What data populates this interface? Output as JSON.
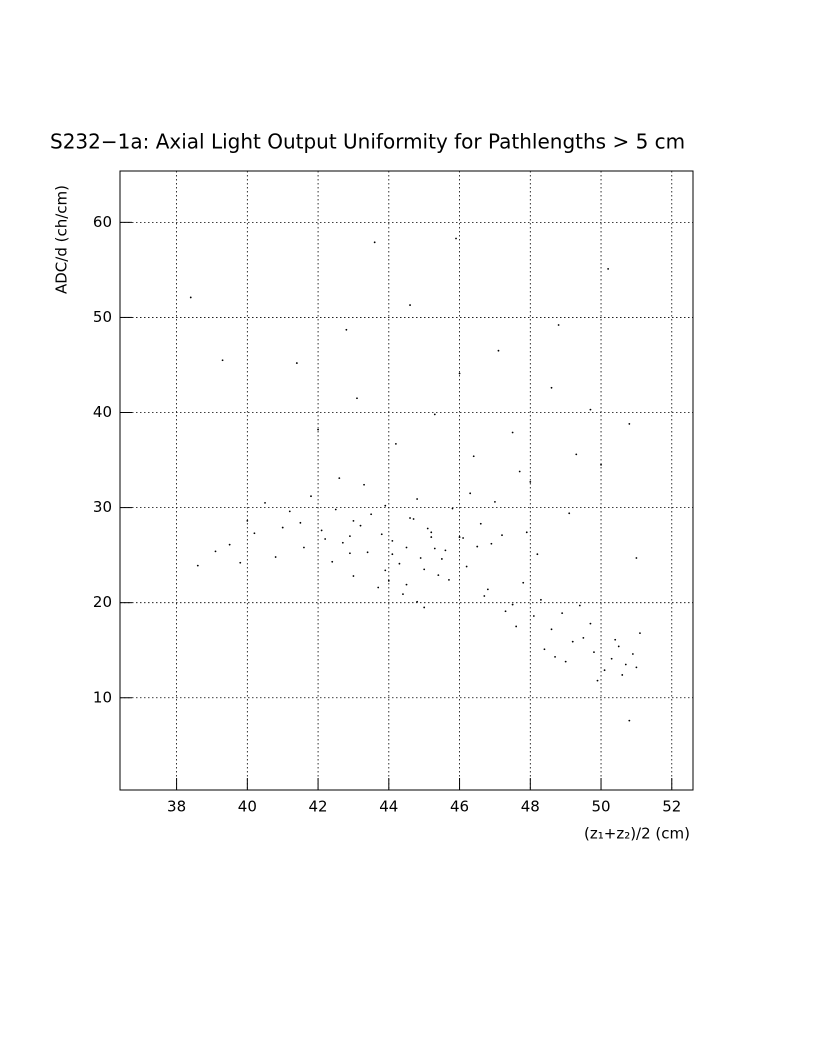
{
  "chart_data": {
    "type": "scatter",
    "title": "S232−1a: Axial Light Output Uniformity for Pathlengths > 5 cm",
    "x_label": "(z₁+z₂)/2 (cm)",
    "y_label": "ADC/d (ch/cm)",
    "xlim": [
      36.4,
      52.6
    ],
    "ylim": [
      0.3,
      65.4
    ],
    "xticks": [
      38,
      40,
      42,
      44,
      46,
      48,
      50,
      52
    ],
    "yticks": [
      10,
      20,
      30,
      40,
      50,
      60
    ],
    "grid": true,
    "color": "#000000",
    "x": [
      44.1,
      43.8,
      44.5,
      45.2,
      43.2,
      42.7,
      44.9,
      45.6,
      46.1,
      43.5,
      42.1,
      41.5,
      44.3,
      45.0,
      46.5,
      47.2,
      43.9,
      44.7,
      42.9,
      45.4,
      46.8,
      47.5,
      48.1,
      48.6,
      49.2,
      49.8,
      50.3,
      50.7,
      49.5,
      48.9,
      50.1,
      50.9,
      48.3,
      47.8,
      49.0,
      50.5,
      51.0,
      49.7,
      48.4,
      47.3,
      40.2,
      39.5,
      40.8,
      41.2,
      39.1,
      38.6,
      40.5,
      41.8,
      42.4,
      43.0,
      43.7,
      44.4,
      45.1,
      45.8,
      46.3,
      42.6,
      43.3,
      44.0,
      44.8,
      45.5,
      42.0,
      43.1,
      44.2,
      45.3,
      46.4,
      47.5,
      48.6,
      49.7,
      50.8,
      41.4,
      42.8,
      44.6,
      46.0,
      47.1,
      48.8,
      50.2,
      45.9,
      43.6,
      49.3,
      47.7,
      46.6,
      47.0,
      47.9,
      48.2,
      46.2,
      45.7,
      44.6,
      43.4,
      42.2,
      41.0,
      40.0,
      39.8,
      41.6,
      42.9,
      44.1,
      45.2,
      46.9,
      48.0,
      49.1,
      50.0,
      51.1,
      50.6,
      49.4,
      48.7,
      49.9,
      50.4,
      47.6,
      46.7,
      45.0,
      43.9,
      44.5,
      45.3,
      43.0,
      42.5,
      44.8,
      46.0,
      38.4,
      39.3,
      51.0,
      50.8
    ],
    "y": [
      26.5,
      27.2,
      25.8,
      26.9,
      28.1,
      26.3,
      24.7,
      25.5,
      26.8,
      29.3,
      27.6,
      28.4,
      24.1,
      23.5,
      25.9,
      27.1,
      30.2,
      28.8,
      25.2,
      22.9,
      21.4,
      19.8,
      18.6,
      17.2,
      15.9,
      14.8,
      14.1,
      13.5,
      16.3,
      18.9,
      12.9,
      14.6,
      20.3,
      22.1,
      13.8,
      15.4,
      13.2,
      17.8,
      15.1,
      19.1,
      27.3,
      26.1,
      24.8,
      29.6,
      25.4,
      23.9,
      30.5,
      31.2,
      24.3,
      22.8,
      21.6,
      20.9,
      27.8,
      29.9,
      31.5,
      33.1,
      32.4,
      22.3,
      20.1,
      24.6,
      38.2,
      41.5,
      36.7,
      39.8,
      35.4,
      37.9,
      42.6,
      40.3,
      38.8,
      45.2,
      48.7,
      51.3,
      44.1,
      46.5,
      49.2,
      55.1,
      58.3,
      57.9,
      35.6,
      33.8,
      28.3,
      30.6,
      27.4,
      25.1,
      23.8,
      22.4,
      28.9,
      25.3,
      26.7,
      27.9,
      28.6,
      24.2,
      25.8,
      27.0,
      25.1,
      27.4,
      26.2,
      32.7,
      29.4,
      34.5,
      16.8,
      12.4,
      19.7,
      14.3,
      11.8,
      16.1,
      17.5,
      20.7,
      19.5,
      23.4,
      21.9,
      25.7,
      28.6,
      29.8,
      30.9,
      26.9,
      52.1,
      45.5,
      24.7,
      7.6
    ]
  }
}
